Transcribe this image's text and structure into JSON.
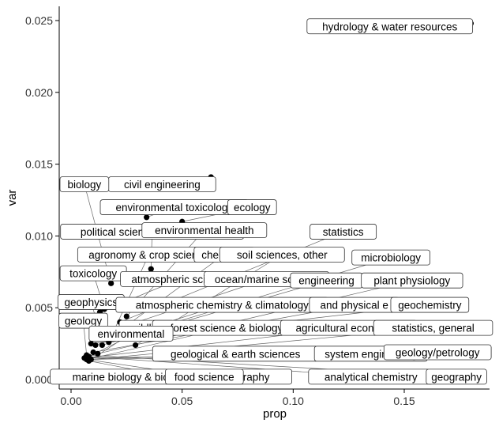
{
  "chart_data": {
    "type": "scatter",
    "xlabel": "prop",
    "ylabel": "var",
    "xlim": [
      -0.005,
      0.19
    ],
    "ylim": [
      -0.0005,
      0.026
    ],
    "x_ticks": [
      0.0,
      0.05,
      0.1,
      0.15
    ],
    "x_tick_labels": [
      "0.00",
      "0.05",
      "0.10",
      "0.15"
    ],
    "y_ticks": [
      0.0,
      0.005,
      0.01,
      0.015,
      0.02,
      0.025
    ],
    "y_tick_labels": [
      "0.000",
      "0.005",
      "0.010",
      "0.015",
      "0.020",
      "0.025"
    ],
    "grid": false,
    "points": [
      {
        "x": 0.18,
        "y": 0.0248
      },
      {
        "x": 0.063,
        "y": 0.0141
      },
      {
        "x": 0.034,
        "y": 0.0113
      },
      {
        "x": 0.05,
        "y": 0.011
      },
      {
        "x": 0.036,
        "y": 0.0077
      },
      {
        "x": 0.018,
        "y": 0.0067
      },
      {
        "x": 0.015,
        "y": 0.0049
      },
      {
        "x": 0.013,
        "y": 0.0047
      },
      {
        "x": 0.025,
        "y": 0.0044
      },
      {
        "x": 0.022,
        "y": 0.004
      },
      {
        "x": 0.019,
        "y": 0.0033
      },
      {
        "x": 0.013,
        "y": 0.0033
      },
      {
        "x": 0.016,
        "y": 0.0033
      },
      {
        "x": 0.02,
        "y": 0.0032
      },
      {
        "x": 0.009,
        "y": 0.0025
      },
      {
        "x": 0.011,
        "y": 0.0024
      },
      {
        "x": 0.014,
        "y": 0.0024
      },
      {
        "x": 0.017,
        "y": 0.0026
      },
      {
        "x": 0.029,
        "y": 0.0024
      },
      {
        "x": 0.01,
        "y": 0.0019
      },
      {
        "x": 0.007,
        "y": 0.0017
      },
      {
        "x": 0.012,
        "y": 0.0018
      },
      {
        "x": 0.008,
        "y": 0.0016
      },
      {
        "x": 0.007,
        "y": 0.0014
      },
      {
        "x": 0.006,
        "y": 0.0015
      },
      {
        "x": 0.009,
        "y": 0.0014
      },
      {
        "x": 0.008,
        "y": 0.0013
      }
    ],
    "labels": [
      {
        "text": "hydrology & water resources",
        "lx": 0.1435,
        "ly": 0.0246,
        "px": 0.18,
        "py": 0.0248
      },
      {
        "text": "civil engineering",
        "lx": 0.041,
        "ly": 0.0136,
        "px": 0.063,
        "py": 0.0141
      },
      {
        "text": "biology",
        "lx": 0.006,
        "ly": 0.0136,
        "px": 0.018,
        "py": 0.0067
      },
      {
        "text": "environmental toxicology",
        "lx": 0.0465,
        "ly": 0.012,
        "px": 0.034,
        "py": 0.0113
      },
      {
        "text": "ecology",
        "lx": 0.0815,
        "ly": 0.012,
        "px": 0.05,
        "py": 0.011
      },
      {
        "text": "political science & governance",
        "lx": 0.0365,
        "ly": 0.0103,
        "px": 0.036,
        "py": 0.0077
      },
      {
        "text": "environmental health",
        "lx": 0.06,
        "ly": 0.0104,
        "px": 0.025,
        "py": 0.0044
      },
      {
        "text": "statistics",
        "lx": 0.1225,
        "ly": 0.0103,
        "px": 0.022,
        "py": 0.004
      },
      {
        "text": "agronomy & crop science",
        "lx": 0.035,
        "ly": 0.0087,
        "px": 0.019,
        "py": 0.0033
      },
      {
        "text": "chemistry",
        "lx": 0.069,
        "ly": 0.0087,
        "px": 0.02,
        "py": 0.0032
      },
      {
        "text": "soil sciences, other",
        "lx": 0.095,
        "ly": 0.0087,
        "px": 0.029,
        "py": 0.0024
      },
      {
        "text": "microbiology",
        "lx": 0.144,
        "ly": 0.0085,
        "px": 0.017,
        "py": 0.0026
      },
      {
        "text": "toxicology",
        "lx": 0.01,
        "ly": 0.0074,
        "px": 0.015,
        "py": 0.0049
      },
      {
        "text": "atmospheric science",
        "lx": 0.049,
        "ly": 0.007,
        "px": 0.013,
        "py": 0.0047
      },
      {
        "text": "ocean/marine science",
        "lx": 0.088,
        "ly": 0.007,
        "px": 0.016,
        "py": 0.0033
      },
      {
        "text": "engineering",
        "lx": 0.115,
        "ly": 0.0069,
        "px": 0.014,
        "py": 0.0024
      },
      {
        "text": "plant physiology",
        "lx": 0.1535,
        "ly": 0.0069,
        "px": 0.012,
        "py": 0.0018
      },
      {
        "text": "geophysics",
        "lx": 0.009,
        "ly": 0.0054,
        "px": 0.013,
        "py": 0.0033
      },
      {
        "text": "atmospheric chemistry & climatology",
        "lx": 0.068,
        "ly": 0.0052,
        "px": 0.011,
        "py": 0.0024
      },
      {
        "text": "and physical e",
        "lx": 0.1275,
        "ly": 0.0052,
        "px": 0.01,
        "py": 0.0019
      },
      {
        "text": "geochemistry",
        "lx": 0.1615,
        "ly": 0.0052,
        "px": 0.009,
        "py": 0.0025
      },
      {
        "text": "geology",
        "lx": 0.0055,
        "ly": 0.0041,
        "px": 0.007,
        "py": 0.0017
      },
      {
        "text": "wildlife",
        "lx": 0.034,
        "ly": 0.0036,
        "px": 0.008,
        "py": 0.0016
      },
      {
        "text": "forest science & biology",
        "lx": 0.07,
        "ly": 0.0036,
        "px": 0.007,
        "py": 0.0014
      },
      {
        "text": "agricultural economics",
        "lx": 0.125,
        "ly": 0.0036,
        "px": 0.006,
        "py": 0.0015
      },
      {
        "text": "statistics, general",
        "lx": 0.163,
        "ly": 0.0036,
        "px": 0.009,
        "py": 0.0014
      },
      {
        "text": "environmental",
        "lx": 0.027,
        "ly": 0.0032,
        "px": 0.008,
        "py": 0.0013
      },
      {
        "text": "geological & earth sciences",
        "lx": 0.074,
        "ly": 0.0018,
        "px": 0.007,
        "py": 0.0014
      },
      {
        "text": "system engineering",
        "lx": 0.135,
        "ly": 0.0018,
        "px": 0.009,
        "py": 0.0014
      },
      {
        "text": "geology/petrology",
        "lx": 0.165,
        "ly": 0.0019,
        "px": 0.006,
        "py": 0.0015
      },
      {
        "text": "marine biology & biological oceanography",
        "lx": 0.045,
        "ly": 0.0002,
        "px": 0.008,
        "py": 0.0013
      },
      {
        "text": "food science",
        "lx": 0.06,
        "ly": 0.0002,
        "px": 0.007,
        "py": 0.0014
      },
      {
        "text": "analytical chemistry",
        "lx": 0.135,
        "ly": 0.0002,
        "px": 0.008,
        "py": 0.0016
      },
      {
        "text": "geography",
        "lx": 0.1735,
        "ly": 0.0002,
        "px": 0.007,
        "py": 0.0017
      }
    ]
  }
}
